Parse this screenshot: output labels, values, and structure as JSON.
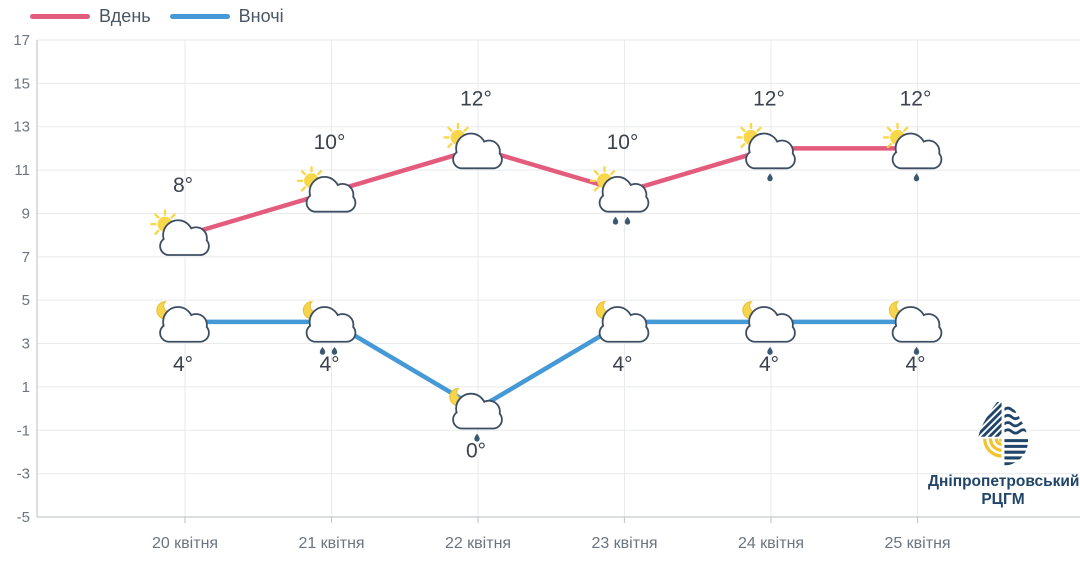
{
  "legend": {
    "day": {
      "label": "Вдень",
      "color": "#e45c7d"
    },
    "night": {
      "label": "Вночі",
      "color": "#4499d6"
    }
  },
  "chart_data": {
    "type": "line",
    "categories": [
      "20 квітня",
      "21 квітня",
      "22 квітня",
      "23 квітня",
      "24 квітня",
      "25 квітня"
    ],
    "series": [
      {
        "name": "Вдень",
        "color": "#e45c7d",
        "icon": "sun-cloud",
        "values": [
          8,
          10,
          12,
          10,
          12,
          12
        ],
        "labels": [
          "8°",
          "10°",
          "12°",
          "10°",
          "12°",
          "12°"
        ],
        "rain_drops": [
          0,
          0,
          0,
          2,
          1,
          1
        ],
        "label_position": "above"
      },
      {
        "name": "Вночі",
        "color": "#4499d6",
        "icon": "moon-cloud",
        "values": [
          4,
          4,
          0,
          4,
          4,
          4
        ],
        "labels": [
          "4°",
          "4°",
          "0°",
          "4°",
          "4°",
          "4°"
        ],
        "rain_drops": [
          0,
          2,
          1,
          0,
          1,
          1
        ],
        "label_position": "below"
      }
    ],
    "ylim": [
      -5,
      17
    ],
    "yticks": [
      17,
      15,
      13,
      11,
      9,
      7,
      5,
      3,
      1,
      -1,
      -3,
      -5
    ],
    "grid": true,
    "legend_position": "top-left",
    "xlabel": "",
    "ylabel": ""
  },
  "logo": {
    "line1": "Дніпропетровський",
    "line2": "РЦГМ"
  },
  "colors": {
    "grid": "#e8eaec",
    "axis": "#c5c9cd",
    "tick_text": "#6b7480",
    "point_label": "#3b424d",
    "cloud_stroke": "#3d4e63",
    "rain_drop": "#3c5870",
    "sun": "#f9d74b",
    "moon": "#f6d44e",
    "moon_stroke": "#e9c33c",
    "logo_navy": "#214569",
    "logo_yellow": "#f0c431"
  }
}
